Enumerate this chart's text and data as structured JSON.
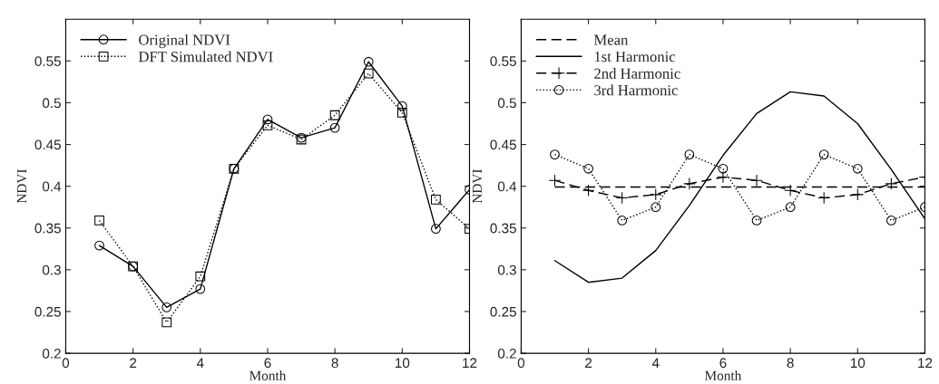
{
  "chart_data": [
    {
      "type": "line",
      "xlabel": "Month",
      "ylabel": "NDVI",
      "x": [
        1,
        2,
        3,
        4,
        5,
        6,
        7,
        8,
        9,
        10,
        11,
        12
      ],
      "xlim": [
        0,
        12
      ],
      "xticks": [
        0,
        2,
        4,
        6,
        8,
        10,
        12
      ],
      "ylim": [
        0.2,
        0.6
      ],
      "yticks": [
        0.2,
        0.25,
        0.3,
        0.35,
        0.4,
        0.45,
        0.5,
        0.55
      ],
      "grid": false,
      "legend": "top left",
      "series": [
        {
          "name": "Original NDVI",
          "color": "#000000",
          "marker": "circle",
          "line_style": "solid",
          "values": [
            0.329,
            0.304,
            0.255,
            0.277,
            0.421,
            0.48,
            0.458,
            0.47,
            0.549,
            0.496,
            0.349,
            0.396
          ]
        },
        {
          "name": "DFT Simulated NDVI",
          "color": "#000000",
          "marker": "square",
          "line_style": "dotted",
          "values": [
            0.359,
            0.304,
            0.237,
            0.292,
            0.421,
            0.473,
            0.456,
            0.485,
            0.535,
            0.488,
            0.384,
            0.349
          ]
        }
      ]
    },
    {
      "type": "line",
      "xlabel": "Month",
      "ylabel": "NDVI",
      "x": [
        1,
        2,
        3,
        4,
        5,
        6,
        7,
        8,
        9,
        10,
        11,
        12
      ],
      "xlim": [
        0,
        12
      ],
      "xticks": [
        0,
        2,
        4,
        6,
        8,
        10,
        12
      ],
      "ylim": [
        0.2,
        0.6
      ],
      "yticks": [
        0.2,
        0.25,
        0.3,
        0.35,
        0.4,
        0.45,
        0.5,
        0.55
      ],
      "grid": false,
      "legend": "top left",
      "series": [
        {
          "name": "Mean",
          "color": "#000000",
          "marker": "none",
          "line_style": "dashed",
          "values": [
            0.399,
            0.399,
            0.399,
            0.399,
            0.399,
            0.399,
            0.399,
            0.399,
            0.399,
            0.399,
            0.399,
            0.399
          ]
        },
        {
          "name": "1st Harmonic",
          "color": "#000000",
          "marker": "none",
          "line_style": "solid",
          "values": [
            0.311,
            0.285,
            0.29,
            0.323,
            0.377,
            0.437,
            0.487,
            0.513,
            0.508,
            0.475,
            0.42,
            0.361
          ]
        },
        {
          "name": "2nd Harmonic",
          "color": "#000000",
          "marker": "cross",
          "line_style": "dashed",
          "values": [
            0.407,
            0.395,
            0.386,
            0.39,
            0.403,
            0.411,
            0.407,
            0.395,
            0.386,
            0.39,
            0.403,
            0.411
          ]
        },
        {
          "name": "3rd Harmonic",
          "color": "#000000",
          "marker": "circle",
          "line_style": "dotted",
          "values": [
            0.438,
            0.421,
            0.359,
            0.375,
            0.438,
            0.421,
            0.359,
            0.375,
            0.438,
            0.421,
            0.359,
            0.375
          ]
        }
      ]
    }
  ]
}
